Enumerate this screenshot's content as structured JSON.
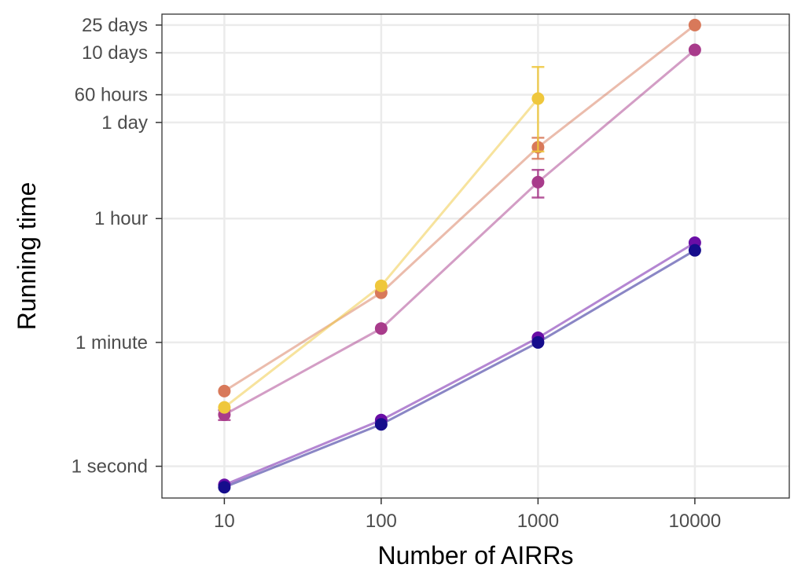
{
  "chart_data": {
    "type": "scatter",
    "xlabel": "Number of AIRRs",
    "ylabel": "Running time",
    "x_scale": "log10",
    "y_scale": "log10",
    "xlim": [
      4,
      40000
    ],
    "ylim": [
      0.35,
      3100000
    ],
    "x_ticks": [
      {
        "value": 10,
        "label": "10"
      },
      {
        "value": 100,
        "label": "100"
      },
      {
        "value": 1000,
        "label": "1000"
      },
      {
        "value": 10000,
        "label": "10000"
      }
    ],
    "y_ticks": [
      {
        "value": 1,
        "label": "1 second"
      },
      {
        "value": 60,
        "label": "1 minute"
      },
      {
        "value": 3600,
        "label": "1 hour"
      },
      {
        "value": 86400,
        "label": "1 day"
      },
      {
        "value": 216000,
        "label": "60 hours"
      },
      {
        "value": 864000,
        "label": "10 days"
      },
      {
        "value": 2160000,
        "label": "25 days"
      }
    ],
    "grid": true,
    "legend": "none",
    "series": [
      {
        "color": "#d8795a",
        "points": [
          {
            "x": 10,
            "y": 12
          },
          {
            "x": 100,
            "y": 310
          },
          {
            "x": 1000,
            "y": 38000,
            "err_low": 26000,
            "err_high": 52000
          },
          {
            "x": 10000,
            "y": 2160000
          }
        ]
      },
      {
        "color": "#a83b8b",
        "points": [
          {
            "x": 10,
            "y": 5.5,
            "err_low": 4.6,
            "err_high": 6.4
          },
          {
            "x": 100,
            "y": 95
          },
          {
            "x": 1000,
            "y": 12000,
            "err_low": 7200,
            "err_high": 18000
          },
          {
            "x": 10000,
            "y": 950000
          }
        ]
      },
      {
        "color": "#efc73c",
        "points": [
          {
            "x": 10,
            "y": 7
          },
          {
            "x": 100,
            "y": 390
          },
          {
            "x": 1000,
            "y": 190000,
            "err_low": 33000,
            "err_high": 540000
          }
        ]
      },
      {
        "color": "#6a0ea6",
        "points": [
          {
            "x": 10,
            "y": 0.54
          },
          {
            "x": 100,
            "y": 4.6
          },
          {
            "x": 1000,
            "y": 70
          },
          {
            "x": 10000,
            "y": 1620
          }
        ]
      },
      {
        "color": "#160d8c",
        "points": [
          {
            "x": 10,
            "y": 0.5
          },
          {
            "x": 100,
            "y": 4.0
          },
          {
            "x": 1000,
            "y": 60
          },
          {
            "x": 10000,
            "y": 1260
          }
        ]
      }
    ]
  }
}
